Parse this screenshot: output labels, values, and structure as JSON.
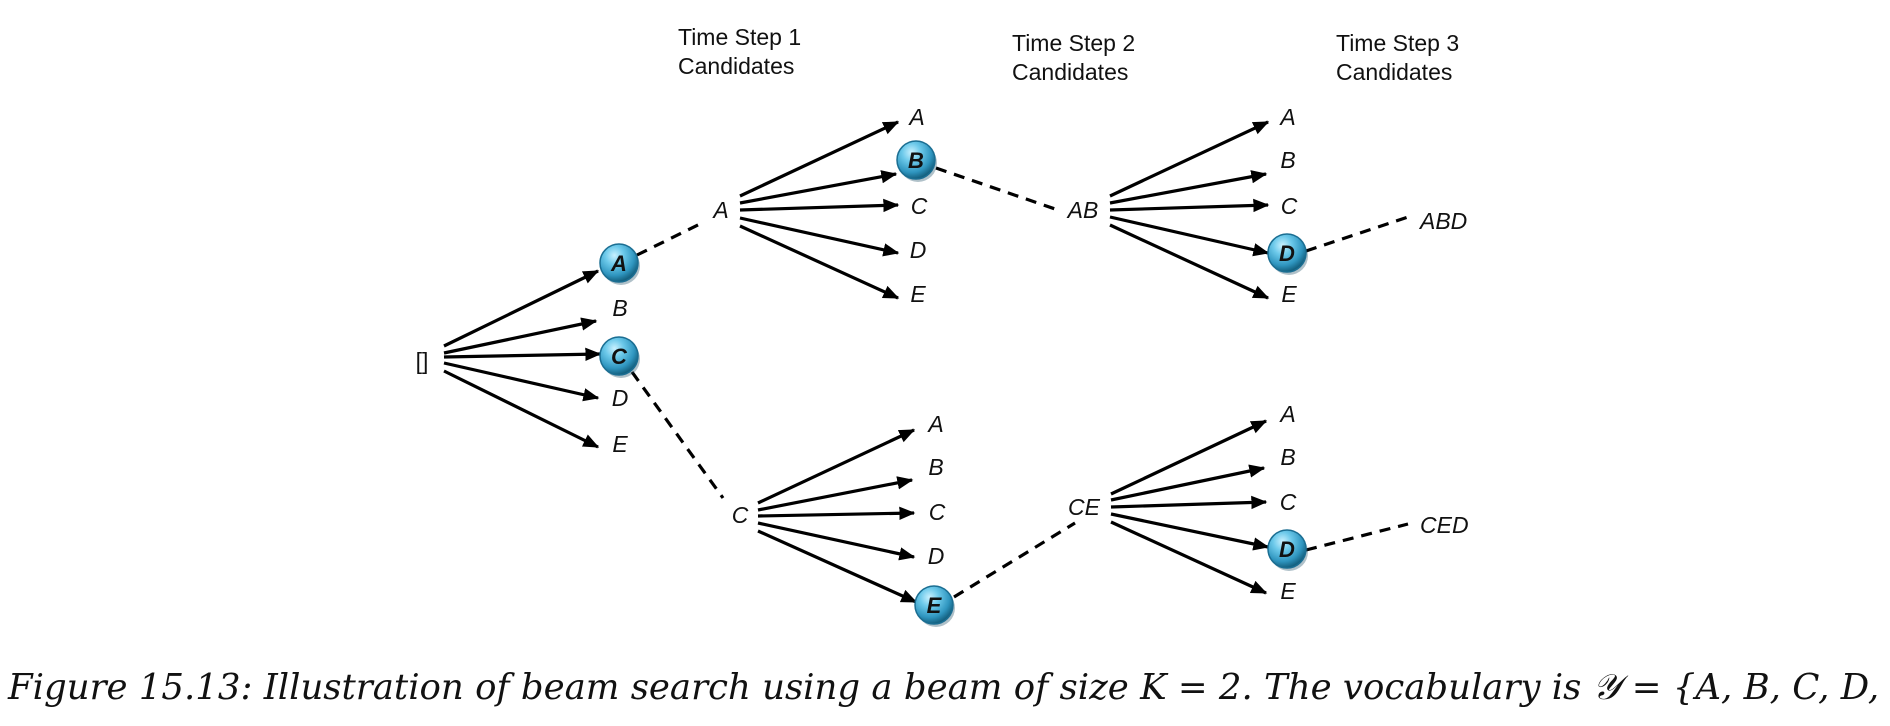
{
  "headers": {
    "step1": {
      "line1": "Time Step 1",
      "line2": "Candidates"
    },
    "step2": {
      "line1": "Time Step 2",
      "line2": "Candidates"
    },
    "step3": {
      "line1": "Time Step 3",
      "line2": "Candidates"
    }
  },
  "beam_size": 2,
  "vocabulary": [
    "A",
    "B",
    "C",
    "D",
    "E"
  ],
  "root_label": "[]",
  "step1": {
    "candidates": [
      "A",
      "B",
      "C",
      "D",
      "E"
    ],
    "selected": [
      "A",
      "C"
    ]
  },
  "step2": {
    "expansions": [
      {
        "prefix": "A",
        "candidates": [
          "A",
          "B",
          "C",
          "D",
          "E"
        ],
        "selected": [
          "B"
        ]
      },
      {
        "prefix": "C",
        "candidates": [
          "A",
          "B",
          "C",
          "D",
          "E"
        ],
        "selected": [
          "E"
        ]
      }
    ]
  },
  "step3": {
    "expansions": [
      {
        "prefix": "AB",
        "candidates": [
          "A",
          "B",
          "C",
          "D",
          "E"
        ],
        "selected": [
          "D"
        ],
        "result": "ABD"
      },
      {
        "prefix": "CE",
        "candidates": [
          "A",
          "B",
          "C",
          "D",
          "E"
        ],
        "selected": [
          "D"
        ],
        "result": "CED"
      }
    ]
  },
  "caption": "Figure 15.13: Illustration of beam search using a beam of size K = 2.  The vocabulary is 𝒴 = {A, B, C, D, E}"
}
